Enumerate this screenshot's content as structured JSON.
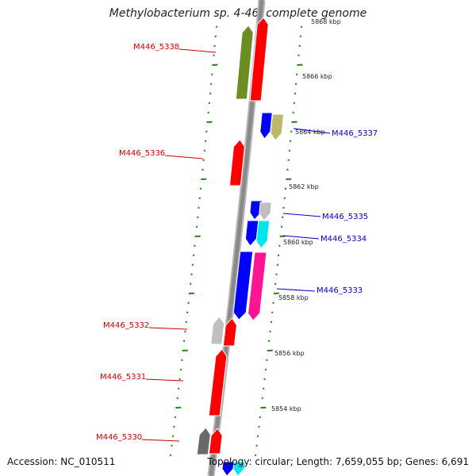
{
  "title": "Methylobacterium sp. 4-46, complete genome",
  "footer": {
    "accession": "Accession: NC_010511",
    "topology": "Topology: circular; Length: 7,659,055 bp; Genes: 6,691"
  },
  "colors": {
    "backbone": "#8a8a8a",
    "tick": "#2e7d1e",
    "label_left": "#cc0000",
    "label_right": "#0000cc"
  },
  "axis_labels": [
    {
      "text": "5868 kbp",
      "kbp": 5868
    },
    {
      "text": "5866 kbp",
      "kbp": 5866
    },
    {
      "text": "5864 kbp",
      "kbp": 5864
    },
    {
      "text": "5862 kbp",
      "kbp": 5862
    },
    {
      "text": "5860 kbp",
      "kbp": 5860
    },
    {
      "text": "5858 kbp",
      "kbp": 5858
    },
    {
      "text": "5856 kbp",
      "kbp": 5856
    },
    {
      "text": "5854 kbp",
      "kbp": 5854
    }
  ],
  "gene_labels": [
    {
      "text": "M446_5338",
      "side": "left"
    },
    {
      "text": "M446_5337",
      "side": "right"
    },
    {
      "text": "M446_5336",
      "side": "left"
    },
    {
      "text": "M446_5335",
      "side": "right"
    },
    {
      "text": "M446_5334",
      "side": "right"
    },
    {
      "text": "M446_5333",
      "side": "right"
    },
    {
      "text": "M446_5332",
      "side": "left"
    },
    {
      "text": "M446_5331",
      "side": "left"
    },
    {
      "text": "M446_5330",
      "side": "left"
    }
  ],
  "genes": [
    {
      "color": "#6b8e23",
      "strand": "minus"
    },
    {
      "color": "#ff0000",
      "strand": "minus"
    },
    {
      "color": "#0000ff",
      "strand": "plus"
    },
    {
      "color": "#bdb76b",
      "strand": "plus"
    },
    {
      "color": "#ff0000",
      "strand": "minus"
    },
    {
      "color": "#0000ff",
      "strand": "plus"
    },
    {
      "color": "#c0c0c0",
      "strand": "plus"
    },
    {
      "color": "#0000ff",
      "strand": "plus"
    },
    {
      "color": "#00e5ee",
      "strand": "plus"
    },
    {
      "color": "#0000ff",
      "strand": "plus"
    },
    {
      "color": "#ff1493",
      "strand": "plus"
    },
    {
      "color": "#c0c0c0",
      "strand": "minus"
    },
    {
      "color": "#ff0000",
      "strand": "minus"
    },
    {
      "color": "#ff0000",
      "strand": "minus"
    },
    {
      "color": "#696969",
      "strand": "minus"
    },
    {
      "color": "#ff0000",
      "strand": "minus"
    },
    {
      "color": "#0000ff",
      "strand": "plus"
    },
    {
      "color": "#00e5ee",
      "strand": "plus"
    }
  ]
}
